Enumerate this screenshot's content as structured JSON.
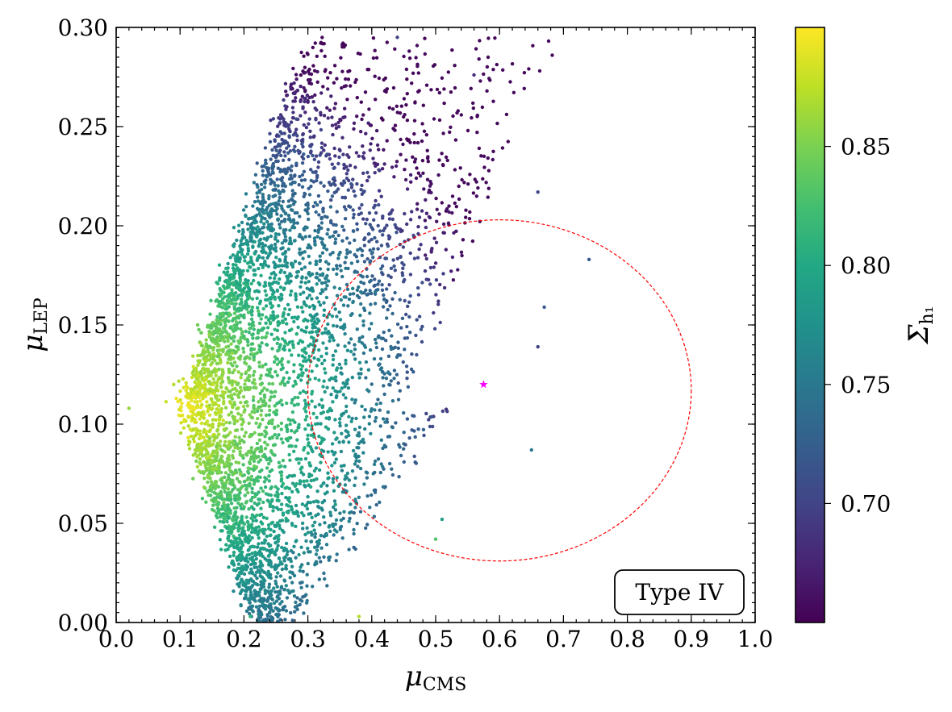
{
  "chart_data": {
    "type": "scatter",
    "title": "",
    "xlabel": "μ",
    "xlabel_sub": "CMS",
    "ylabel": "μ",
    "ylabel_sub": "LEP",
    "xlim": [
      0.0,
      1.0
    ],
    "ylim": [
      0.0,
      0.3
    ],
    "xticks": [
      0.0,
      0.1,
      0.2,
      0.3,
      0.4,
      0.5,
      0.6,
      0.7,
      0.8,
      0.9,
      1.0
    ],
    "xtick_labels": [
      "0.0",
      "0.1",
      "0.2",
      "0.3",
      "0.4",
      "0.5",
      "0.6",
      "0.7",
      "0.8",
      "0.9",
      "1.0"
    ],
    "yticks": [
      0.0,
      0.05,
      0.1,
      0.15,
      0.2,
      0.25,
      0.3
    ],
    "ytick_labels": [
      "0.00",
      "0.05",
      "0.10",
      "0.15",
      "0.20",
      "0.25",
      "0.30"
    ],
    "colorbar": {
      "label": "Σ",
      "label_sub": "h₁",
      "range": [
        0.65,
        0.9
      ],
      "ticks": [
        0.7,
        0.75,
        0.8,
        0.85
      ],
      "tick_labels": [
        "0.70",
        "0.75",
        "0.80",
        "0.85"
      ],
      "colormap": "viridis"
    },
    "series": [
      {
        "name": "scan points",
        "description": "approx. 5000 parameter-scan points, color-coded by Σ_h1",
        "sampled_points": [
          {
            "x": 0.02,
            "y": 0.108,
            "c": 0.86
          },
          {
            "x": 0.09,
            "y": 0.12,
            "c": 0.87
          },
          {
            "x": 0.21,
            "y": 0.003,
            "c": 0.81
          },
          {
            "x": 0.38,
            "y": 0.003,
            "c": 0.87
          },
          {
            "x": 0.66,
            "y": 0.217,
            "c": 0.7
          },
          {
            "x": 0.74,
            "y": 0.183,
            "c": 0.72
          },
          {
            "x": 0.67,
            "y": 0.159,
            "c": 0.72
          },
          {
            "x": 0.66,
            "y": 0.139,
            "c": 0.7
          },
          {
            "x": 0.65,
            "y": 0.087,
            "c": 0.75
          },
          {
            "x": 0.5,
            "y": 0.042,
            "c": 0.83
          },
          {
            "x": 0.51,
            "y": 0.052,
            "c": 0.79
          },
          {
            "x": 0.56,
            "y": 0.276,
            "c": 0.68
          },
          {
            "x": 0.44,
            "y": 0.295,
            "c": 0.7
          }
        ],
        "marker_size": 2.2
      },
      {
        "name": "best point",
        "points": [
          {
            "x": 0.575,
            "y": 0.12
          }
        ],
        "marker": "star",
        "color": "#ff00ff"
      }
    ],
    "ellipse": {
      "center": {
        "x": 0.6,
        "y": 0.117
      },
      "semi_axis_x": 0.3,
      "semi_axis_y": 0.086,
      "color": "#ff0000",
      "style": "dashed"
    },
    "annotation": {
      "text": "Type IV",
      "position": "bottom-right"
    },
    "grid": false,
    "legend": "none"
  }
}
